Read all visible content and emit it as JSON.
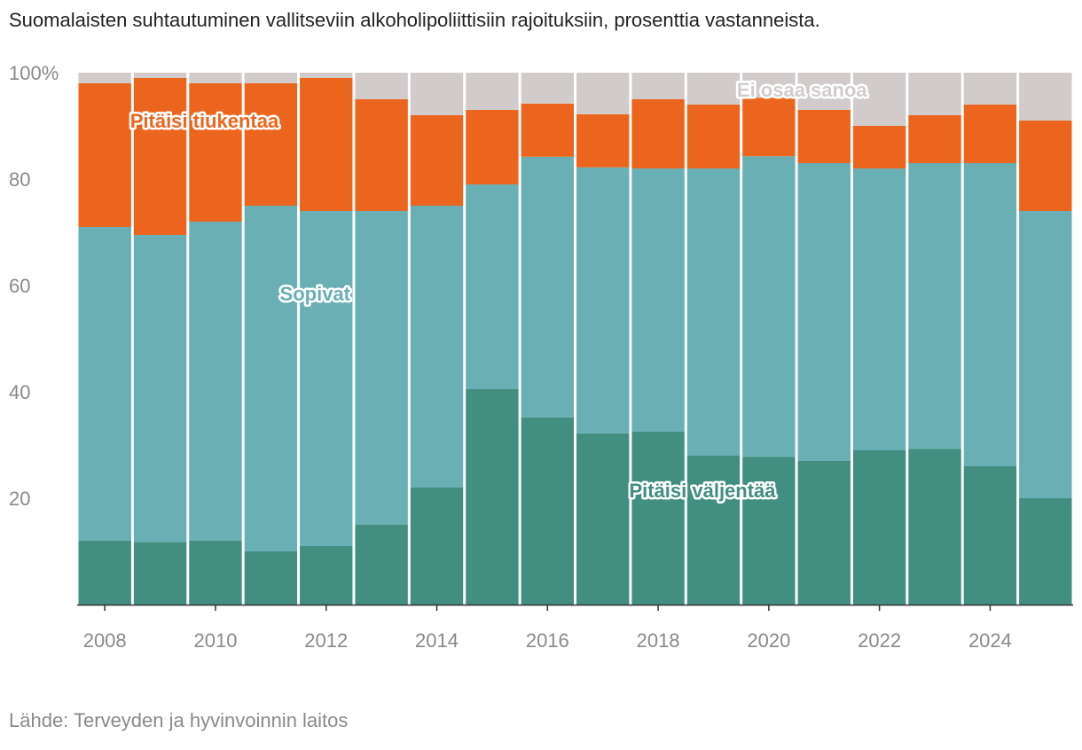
{
  "title": "Suomalaisten suhtautuminen vallitseviin alkoholipoliittisiin rajoituksiin, prosenttia vastanneista.",
  "source": "Lähde: Terveyden ja hyvinvoinnin laitos",
  "chart_data": {
    "type": "bar",
    "stacked": true,
    "title": "Suomalaisten suhtautuminen vallitseviin alkoholipoliittisiin rajoituksiin, prosenttia vastanneista.",
    "xlabel": "",
    "ylabel": "",
    "ylim": [
      0,
      100
    ],
    "categories": [
      2008,
      2009,
      2010,
      2011,
      2012,
      2013,
      2014,
      2015,
      2016,
      2017,
      2018,
      2019,
      2020,
      2021,
      2022,
      2023,
      2024,
      2025
    ],
    "x_ticks": [
      2008,
      2010,
      2012,
      2014,
      2016,
      2018,
      2020,
      2022,
      2024
    ],
    "y_ticks": [
      {
        "value": 20,
        "label": "20"
      },
      {
        "value": 40,
        "label": "40"
      },
      {
        "value": 60,
        "label": "60"
      },
      {
        "value": 80,
        "label": "80"
      },
      {
        "value": 100,
        "label": "100%"
      }
    ],
    "series": [
      {
        "name": "Pitäisi väljentää",
        "color": "#428e80",
        "values": [
          12,
          11.8,
          12,
          10,
          11,
          15,
          22,
          40.5,
          35.2,
          32.2,
          32.5,
          28,
          27.8,
          27,
          29,
          29.3,
          26,
          20
        ]
      },
      {
        "name": "Sopivat",
        "color": "#6aafb4",
        "values": [
          59,
          57.7,
          60,
          65,
          63,
          59,
          53,
          38.5,
          49,
          50,
          49.5,
          54,
          56.5,
          56,
          53,
          53.7,
          57,
          54
        ]
      },
      {
        "name": "Pitäisi tiukentaa",
        "color": "#ec651e",
        "values": [
          27,
          29.5,
          26,
          23,
          25,
          21,
          17,
          14,
          10,
          10,
          13,
          12,
          11,
          10,
          8,
          9,
          11,
          17
        ]
      },
      {
        "name": "Ei osaa sanoa",
        "color": "#d1cccb",
        "values": [
          2,
          1,
          2,
          2,
          1,
          5,
          8,
          7,
          5.8,
          7.8,
          5,
          6,
          4.7,
          7,
          10,
          8,
          6,
          9
        ]
      }
    ],
    "annotations": [
      {
        "text": "Pitäisi tiukentaa",
        "series": "Pitäisi tiukentaa",
        "color": "#ec651e",
        "x": 2009.8,
        "y": 91
      },
      {
        "text": "Sopivat",
        "series": "Sopivat",
        "color": "#6aafb4",
        "x": 2011.8,
        "y": 58.5
      },
      {
        "text": "Pitäisi väljentää",
        "series": "Pitäisi väljentää",
        "color": "#428e80",
        "x": 2018.8,
        "y": 21.5
      },
      {
        "text": "Ei osaa sanoa",
        "series": "Ei osaa sanoa",
        "color": "#d1cccb",
        "x": 2020.6,
        "y": 96.8
      }
    ]
  }
}
